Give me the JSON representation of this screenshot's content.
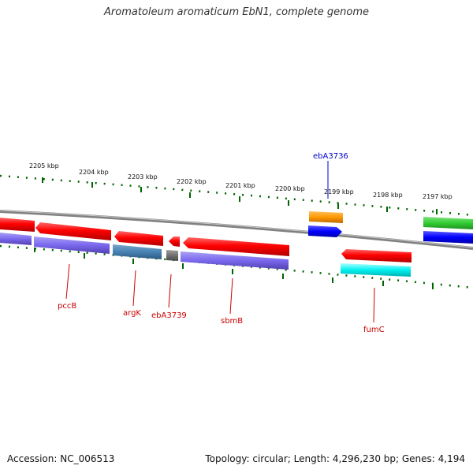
{
  "title": "Aromatoleum aromaticum EbN1, complete genome",
  "accession": "Accession: NC_006513",
  "topology": "Topology: circular; Length: 4,296,230 bp; Genes: 4,194",
  "ticks": [
    "2205 kbp",
    "2204 kbp",
    "2203 kbp",
    "2202 kbp",
    "2201 kbp",
    "2200 kbp",
    "2199 kbp",
    "2198 kbp",
    "2197 kbp"
  ],
  "gene_labels": {
    "pccB": "pccB",
    "argK": "argK",
    "ebA3739": "ebA3739",
    "sbmB": "sbmB",
    "fumC": "fumC",
    "ebA3736": "ebA3736"
  },
  "colors": {
    "cds": "#ff0000",
    "product": "#7b68ee",
    "label_red": "#cc0000",
    "label_blue": "#0000cc",
    "tick": "#006400",
    "backbone": "#808080"
  }
}
